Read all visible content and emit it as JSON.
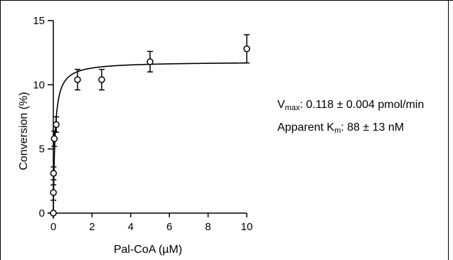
{
  "chart_data": {
    "type": "scatter",
    "xlabel": "Pal-CoA (µM)",
    "ylabel": "Conversion (%)",
    "xlim": [
      0,
      10
    ],
    "ylim": [
      0,
      15
    ],
    "xticks": [
      0,
      2,
      4,
      6,
      8,
      10
    ],
    "yticks": [
      0,
      5,
      10,
      15
    ],
    "grid": false,
    "points": [
      {
        "x": 0.0,
        "y": 0.0,
        "err": 0.0
      },
      {
        "x": 0.005,
        "y": 1.6,
        "err": 0.6
      },
      {
        "x": 0.01,
        "y": 3.1,
        "err": 0.5
      },
      {
        "x": 0.05,
        "y": 5.8,
        "err": 0.6
      },
      {
        "x": 0.15,
        "y": 6.9,
        "err": 0.6
      },
      {
        "x": 1.25,
        "y": 10.4,
        "err": 0.8
      },
      {
        "x": 2.5,
        "y": 10.4,
        "err": 0.8
      },
      {
        "x": 5.0,
        "y": 11.8,
        "err": 0.8
      },
      {
        "x": 10.0,
        "y": 12.8,
        "err": 1.1
      }
    ],
    "fit": {
      "model": "Michaelis-Menten",
      "vmax_pct": 11.8,
      "km_uM": 0.088
    }
  },
  "annotations": {
    "vmax_symbol": "V",
    "vmax_sub": "max",
    "vmax_text": ": 0.118 ± 0.004 pmol/min",
    "km_prefix": "Apparent K",
    "km_sub": "m",
    "km_text": ": 88 ± 13 nM"
  }
}
